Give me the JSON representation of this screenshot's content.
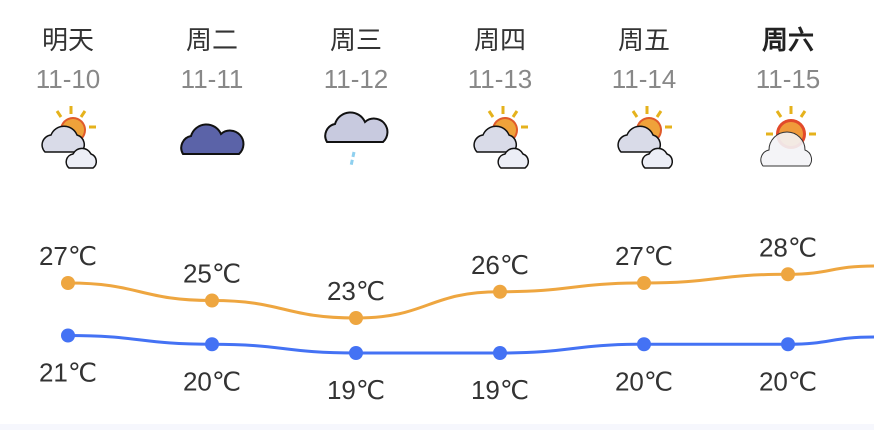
{
  "days": [
    {
      "day": "明天",
      "date": "11-10",
      "icon": "partly-cloudy-icon",
      "high": "27℃",
      "low": "21℃",
      "bold": false
    },
    {
      "day": "周二",
      "date": "11-11",
      "icon": "overcast-icon",
      "high": "25℃",
      "low": "20℃",
      "bold": false
    },
    {
      "day": "周三",
      "date": "11-12",
      "icon": "light-rain-icon",
      "high": "23℃",
      "low": "19℃",
      "bold": false
    },
    {
      "day": "周四",
      "date": "11-13",
      "icon": "partly-cloudy-icon",
      "high": "26℃",
      "low": "19℃",
      "bold": false
    },
    {
      "day": "周五",
      "date": "11-14",
      "icon": "partly-cloudy-icon",
      "high": "27℃",
      "low": "20℃",
      "bold": false
    },
    {
      "day": "周六",
      "date": "11-15",
      "icon": "sunny-cloudy-icon",
      "high": "28℃",
      "low": "20℃",
      "bold": true
    }
  ],
  "chart_data": {
    "type": "line",
    "categories": [
      "11-10",
      "11-11",
      "11-12",
      "11-13",
      "11-14",
      "11-15"
    ],
    "series": [
      {
        "values": [
          27,
          25,
          23,
          26,
          27,
          28
        ],
        "color": "#eea640"
      },
      {
        "values": [
          21,
          20,
          19,
          19,
          20,
          20
        ],
        "color": "#4472f4"
      }
    ]
  }
}
